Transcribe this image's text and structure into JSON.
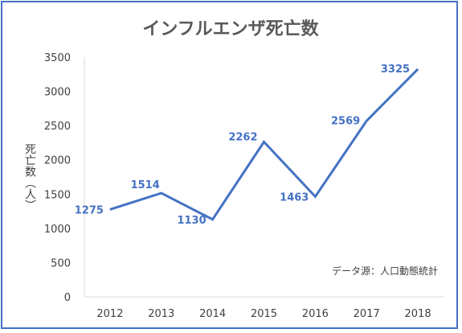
{
  "chart_data": {
    "type": "line",
    "title": "インフルエンザ死亡数",
    "ylabel": "死亡数（人）",
    "xlabel": "",
    "categories": [
      "2012",
      "2013",
      "2014",
      "2015",
      "2016",
      "2017",
      "2018"
    ],
    "series": [
      {
        "values": [
          1275,
          1514,
          1130,
          2262,
          1463,
          2569,
          3325
        ]
      }
    ],
    "ylim": [
      0,
      3500
    ],
    "yticks": [
      0,
      500,
      1000,
      1500,
      2000,
      2500,
      3000,
      3500
    ],
    "grid": false,
    "legend": "none",
    "annotation": "データ源：人口動態統計",
    "line_color": "#4472c4"
  }
}
